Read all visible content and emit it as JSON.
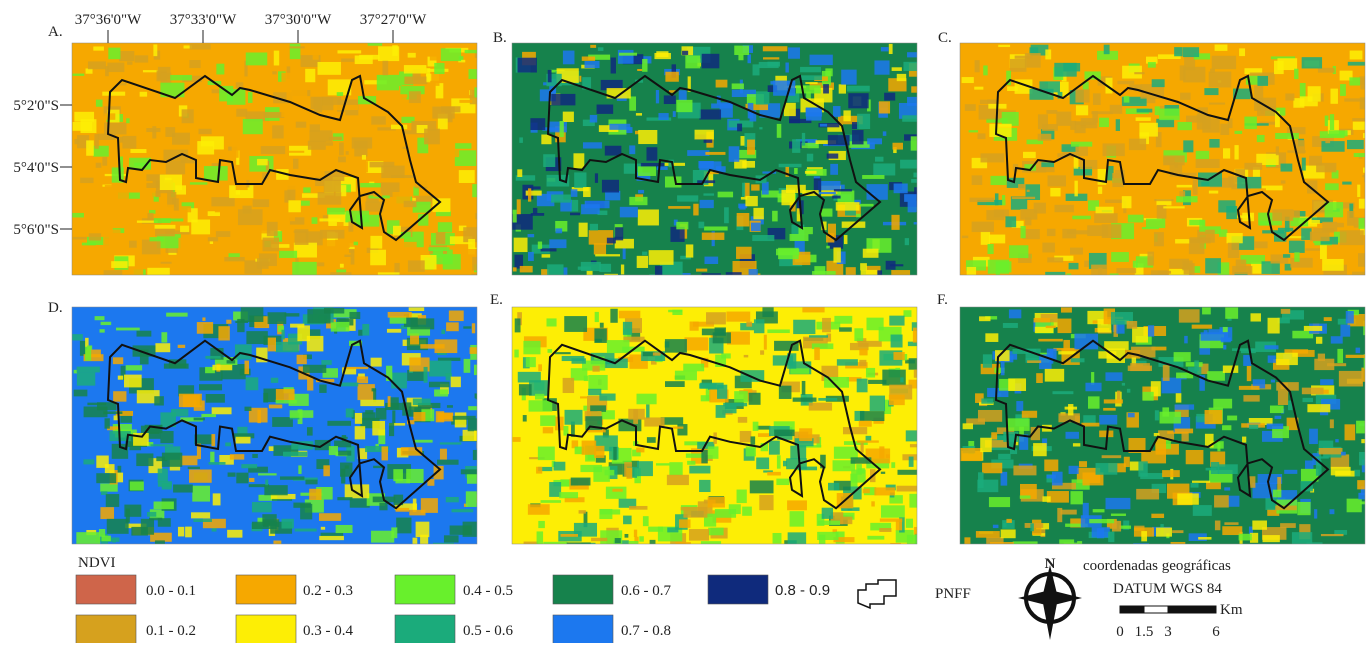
{
  "panels": [
    {
      "label": "A."
    },
    {
      "label": "B."
    },
    {
      "label": "C."
    },
    {
      "label": "D."
    },
    {
      "label": "E."
    },
    {
      "label": "F."
    }
  ],
  "x_ticks": [
    "37°36'0\"W",
    "37°33'0\"W",
    "37°30'0\"W",
    "37°27'0\"W"
  ],
  "y_ticks": [
    "5°2'0\"S",
    "5°4'0\"S",
    "5°6'0\"S"
  ],
  "legend": {
    "title": "NDVI",
    "classes": [
      {
        "label": "0.0 - 0.1",
        "color": "#cf654a"
      },
      {
        "label": "0.1 - 0.2",
        "color": "#d6a11e"
      },
      {
        "label": "0.2 - 0.3",
        "color": "#f6a800"
      },
      {
        "label": "0.3 - 0.4",
        "color": "#fdee05"
      },
      {
        "label": "0.4 - 0.5",
        "color": "#68f02c"
      },
      {
        "label": "0.5 - 0.6",
        "color": "#1bab7b"
      },
      {
        "label": "0.6 - 0.7",
        "color": "#16824c"
      },
      {
        "label": "0.7 - 0.8",
        "color": "#1c78ef"
      },
      {
        "label": "0.8 - 0.9",
        "color": "#0f2a7c"
      }
    ],
    "boundary": "PNFF"
  },
  "north": "N",
  "coordinate_system": "coordenadas geográficas",
  "datum": "DATUM WGS 84",
  "scale": {
    "unit": "Km",
    "ticks": [
      0,
      1.5,
      3,
      6
    ]
  }
}
